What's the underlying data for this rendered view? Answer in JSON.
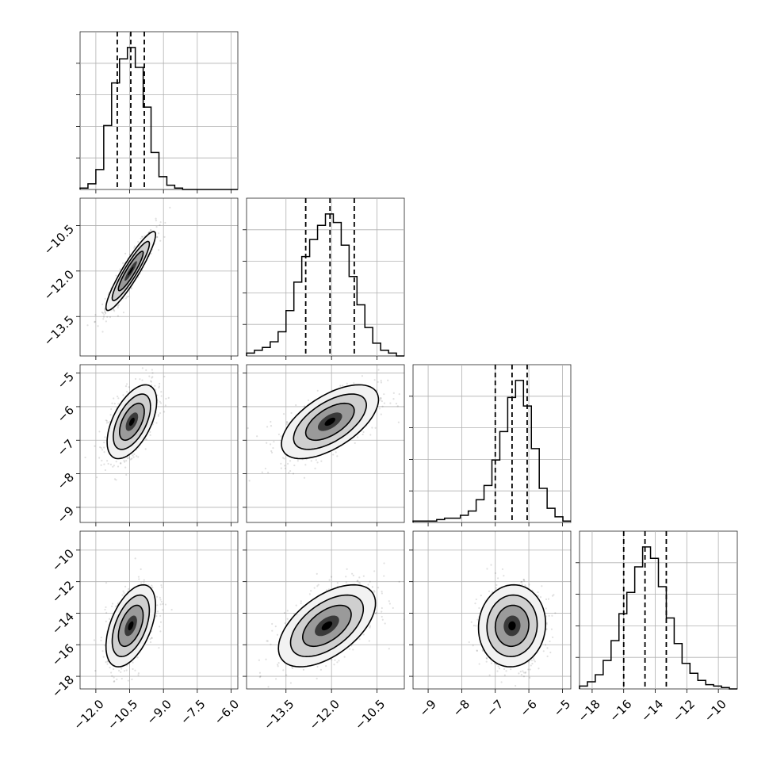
{
  "chart_data": {
    "type": "corner",
    "parameters": [
      {
        "range": [
          -12.7,
          -5.7
        ],
        "hist_ylim": [
          0,
          1.0
        ],
        "ticks": [
          -12.0,
          -10.5,
          -9.0,
          -7.5,
          -6.0
        ],
        "tick_labels": [
          "−12.0",
          "−10.5",
          "−9.0",
          "−7.5",
          "−6.0"
        ],
        "quantiles": [
          -11.05,
          -10.45,
          -9.85
        ]
      },
      {
        "range": [
          -14.8,
          -9.6
        ],
        "hist_ylim": [
          0,
          1.0
        ],
        "ticks": [
          -13.5,
          -12.0,
          -10.5
        ],
        "tick_labels": [
          "−13.5",
          "−12.0",
          "−10.5"
        ],
        "quantiles": [
          -12.85,
          -12.05,
          -11.25
        ]
      },
      {
        "range": [
          -9.45,
          -4.75
        ],
        "hist_ylim": [
          0,
          1.0
        ],
        "ticks": [
          -9,
          -8,
          -7,
          -6,
          -5
        ],
        "tick_labels": [
          "−9",
          "−8",
          "−7",
          "−6",
          "−5"
        ],
        "quantiles": [
          -7.0,
          -6.5,
          -6.05
        ]
      },
      {
        "range": [
          -18.8,
          -8.8
        ],
        "hist_ylim": [
          0,
          1.0
        ],
        "ticks": [
          -18,
          -16,
          -14,
          -12,
          -10
        ],
        "tick_labels": [
          "−18",
          "−16",
          "−14",
          "−12",
          "−10"
        ],
        "quantiles": [
          -16.0,
          -14.65,
          -13.3
        ]
      }
    ],
    "histograms": [
      {
        "edges": [
          -12.7,
          -12.35,
          -12.0,
          -11.65,
          -11.3,
          -10.95,
          -10.6,
          -10.25,
          -9.9,
          -9.55,
          -9.2,
          -8.85,
          -8.5,
          -8.15,
          -7.8,
          -7.45,
          -7.1,
          -6.75,
          -6.4,
          -6.05,
          -5.7
        ],
        "counts": [
          0.01,
          0.04,
          0.14,
          0.45,
          0.75,
          0.92,
          1.0,
          0.86,
          0.58,
          0.26,
          0.09,
          0.03,
          0.01,
          0,
          0,
          0,
          0,
          0,
          0,
          0
        ]
      },
      {
        "edges": [
          -14.8,
          -14.54,
          -14.28,
          -14.02,
          -13.76,
          -13.5,
          -13.24,
          -12.98,
          -12.72,
          -12.46,
          -12.2,
          -11.94,
          -11.68,
          -11.42,
          -11.16,
          -10.9,
          -10.64,
          -10.38,
          -10.12,
          -9.86,
          -9.6
        ],
        "counts": [
          0.02,
          0.04,
          0.06,
          0.1,
          0.17,
          0.32,
          0.52,
          0.7,
          0.82,
          0.92,
          1.0,
          0.94,
          0.78,
          0.56,
          0.36,
          0.2,
          0.09,
          0.04,
          0.02,
          0
        ]
      },
      {
        "edges": [
          -9.45,
          -9.215,
          -8.98,
          -8.745,
          -8.51,
          -8.275,
          -8.04,
          -7.805,
          -7.57,
          -7.335,
          -7.1,
          -6.865,
          -6.63,
          -6.395,
          -6.16,
          -5.925,
          -5.69,
          -5.455,
          -5.22,
          -4.985,
          -4.75
        ],
        "counts": [
          0.01,
          0.01,
          0.01,
          0.02,
          0.03,
          0.03,
          0.05,
          0.08,
          0.16,
          0.26,
          0.44,
          0.64,
          0.88,
          1.0,
          0.82,
          0.52,
          0.24,
          0.1,
          0.04,
          0.01
        ]
      },
      {
        "edges": [
          -18.8,
          -18.3,
          -17.8,
          -17.3,
          -16.8,
          -16.3,
          -15.8,
          -15.3,
          -14.8,
          -14.3,
          -13.8,
          -13.3,
          -12.8,
          -12.3,
          -11.8,
          -11.3,
          -10.8,
          -10.3,
          -9.8,
          -9.3,
          -8.8
        ],
        "counts": [
          0.02,
          0.05,
          0.1,
          0.2,
          0.34,
          0.53,
          0.68,
          0.86,
          1.0,
          0.92,
          0.72,
          0.5,
          0.32,
          0.18,
          0.11,
          0.06,
          0.03,
          0.02,
          0.01,
          0
        ]
      }
    ],
    "pairs": [
      {
        "x": 0,
        "y": 1,
        "mean": [
          -10.45,
          -12.0
        ],
        "sigma": [
          0.55,
          0.65
        ],
        "rho": 0.92
      },
      {
        "x": 0,
        "y": 2,
        "mean": [
          -10.4,
          -6.45
        ],
        "sigma": [
          0.55,
          0.55
        ],
        "rho": 0.55
      },
      {
        "x": 1,
        "y": 2,
        "mean": [
          -12.05,
          -6.45
        ],
        "sigma": [
          0.8,
          0.55
        ],
        "rho": 0.6
      },
      {
        "x": 0,
        "y": 3,
        "mean": [
          -10.45,
          -14.8
        ],
        "sigma": [
          0.55,
          1.3
        ],
        "rho": 0.5
      },
      {
        "x": 1,
        "y": 3,
        "mean": [
          -12.15,
          -14.8
        ],
        "sigma": [
          0.8,
          1.3
        ],
        "rho": 0.55
      },
      {
        "x": 2,
        "y": 3,
        "mean": [
          -6.5,
          -14.8
        ],
        "sigma": [
          0.5,
          1.3
        ],
        "rho": 0.05
      }
    ],
    "contour_levels_sigma": [
      0.5,
      1.0,
      1.5,
      2.0
    ],
    "colors": {
      "line": "#000000",
      "grid": "#b0b0b0",
      "fill_dark": "#000000",
      "point": "#000000"
    }
  }
}
